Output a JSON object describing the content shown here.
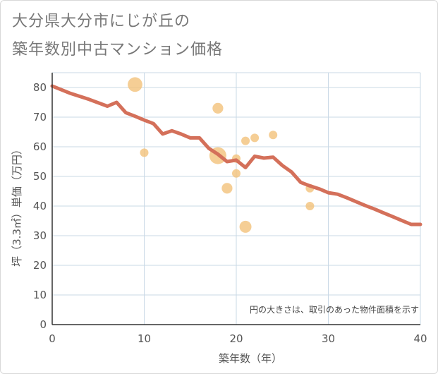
{
  "title_line1": "大分県大分市にじが丘の",
  "title_line2": "築年数別中古マンション価格",
  "chart_data": {
    "type": "scatter",
    "title": "大分県大分市にじが丘の築年数別中古マンション価格",
    "xlabel": "築年数（年）",
    "ylabel": "坪（3.3㎡）単価（万円）",
    "xlim": [
      0,
      40
    ],
    "ylim": [
      0,
      85
    ],
    "x_ticks": [
      "0",
      "10",
      "20",
      "30",
      "40"
    ],
    "y_ticks": [
      "0",
      "10",
      "20",
      "30",
      "40",
      "50",
      "60",
      "70",
      "80"
    ],
    "grid": true,
    "annotation": "円の大きさは、取引のあった物件面積を示す",
    "colors": {
      "bubble": "#f3c27a",
      "line": "#d4705a",
      "grid": "#c9d8e6",
      "axis": "#333333"
    },
    "bubbles": [
      {
        "x": 9,
        "y": 81,
        "size": 3
      },
      {
        "x": 10,
        "y": 58,
        "size": 1
      },
      {
        "x": 18,
        "y": 73,
        "size": 1.6
      },
      {
        "x": 18,
        "y": 57,
        "size": 4
      },
      {
        "x": 19,
        "y": 46,
        "size": 1.6
      },
      {
        "x": 20,
        "y": 56,
        "size": 1
      },
      {
        "x": 20,
        "y": 51,
        "size": 1
      },
      {
        "x": 21,
        "y": 62,
        "size": 1
      },
      {
        "x": 21,
        "y": 33,
        "size": 2
      },
      {
        "x": 22,
        "y": 63,
        "size": 1
      },
      {
        "x": 24,
        "y": 64,
        "size": 1
      },
      {
        "x": 28,
        "y": 46,
        "size": 1
      },
      {
        "x": 28,
        "y": 40,
        "size": 1
      }
    ],
    "series": [
      {
        "name": "trend",
        "x": [
          0,
          2,
          4,
          6,
          7,
          8,
          9,
          10,
          11,
          12,
          13,
          14,
          15,
          16,
          17,
          18,
          19,
          20,
          21,
          22,
          23,
          24,
          25,
          26,
          27,
          28,
          29,
          30,
          31,
          32,
          33,
          34,
          35,
          36,
          37,
          38,
          39,
          40
        ],
        "values": [
          80.5,
          78,
          76,
          73.7,
          75,
          71.5,
          70.3,
          69,
          67.8,
          64.3,
          65.4,
          64.3,
          63,
          63,
          59.5,
          57.5,
          55,
          55.5,
          53,
          56.8,
          56.2,
          56.5,
          53.7,
          51.5,
          48,
          46.8,
          45.8,
          44.5,
          44,
          42.8,
          41.5,
          40.2,
          39,
          37.7,
          36.4,
          35.1,
          33.8,
          33.8
        ]
      }
    ]
  }
}
